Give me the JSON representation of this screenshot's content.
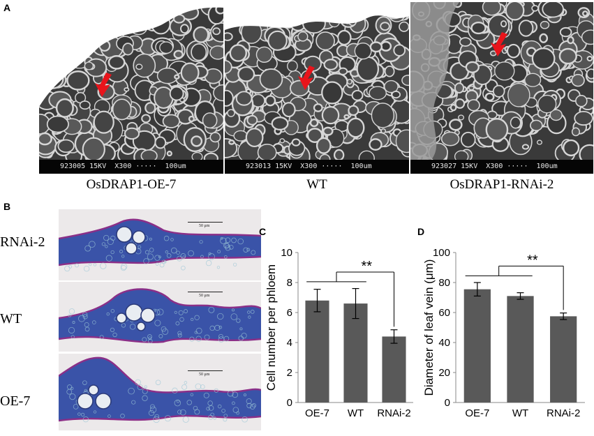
{
  "panels": {
    "A": {
      "label": "A",
      "images": [
        {
          "scale_text": "923005 15KV  X300 ·····  100um",
          "caption": "OsDRAP1-OE-7"
        },
        {
          "scale_text": "923013 15KV  X300 ·····  100um",
          "caption": "WT"
        },
        {
          "scale_text": "923027 15KV  X300 ·····  100um",
          "caption": "OsDRAP1-RNAi-2"
        }
      ],
      "arrow_color": "#e8141b"
    },
    "B": {
      "label": "B",
      "rows": [
        {
          "label": "RNAi-2",
          "scale_text": "50 μm"
        },
        {
          "label": "WT",
          "scale_text": "50 μm"
        },
        {
          "label": "OE-7",
          "scale_text": "50 μm"
        }
      ],
      "stain_color": "#3a53a8"
    },
    "C": {
      "label": "C"
    },
    "D": {
      "label": "D"
    }
  },
  "chart_data": [
    {
      "type": "bar",
      "panel": "C",
      "categories": [
        "OE-7",
        "WT",
        "RNAi-2"
      ],
      "values": [
        6.8,
        6.6,
        4.4
      ],
      "errors": [
        0.75,
        1.0,
        0.45
      ],
      "ylabel": "Cell number per  phloem",
      "ylim": [
        0,
        10
      ],
      "yticks": [
        0,
        2,
        4,
        6,
        8,
        10
      ],
      "significance": "**",
      "bar_color": "#595959"
    },
    {
      "type": "bar",
      "panel": "D",
      "categories": [
        "OE-7",
        "WT",
        "RNAi-2"
      ],
      "values": [
        75.5,
        71,
        57.5
      ],
      "errors": [
        4.5,
        2.2,
        2.2
      ],
      "ylabel": "Diameter of leaf vein (μm)",
      "ylim": [
        0,
        100
      ],
      "yticks": [
        0,
        20,
        40,
        60,
        80,
        100
      ],
      "significance": "**",
      "bar_color": "#595959"
    }
  ]
}
